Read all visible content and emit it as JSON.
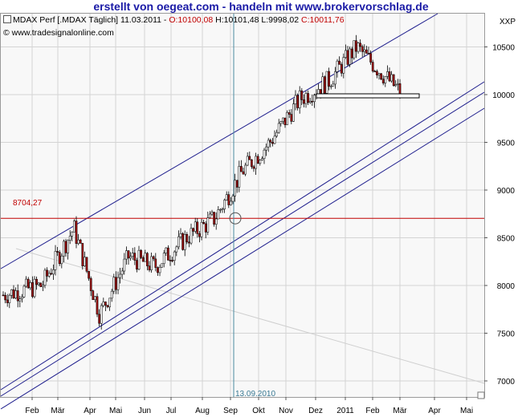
{
  "banner": "erstellt von oegeat.com - handeln mit www.brokervorschlag.de",
  "header": {
    "instrument": "MDAX Perf [.MDAX  Täglich] 11.03.2011 -",
    "open": "O:10100,08",
    "high": "H:10101,48",
    "low": "L:9998,02",
    "close": "C:10011,76"
  },
  "copyright": "© www.tradesignalonline.com",
  "symbol": "XXP",
  "horizontal_line_label": "8704,27",
  "vertical_line_label": "13.09.2010",
  "colors": {
    "title": "#1a1aa6",
    "channel_lines": "#1c1c8c",
    "horizontal_line": "#c00000",
    "vertical_line": "#4a8aa0",
    "up_candle": "#ffffff",
    "down_candle": "#a01010",
    "grid": "#d4d4d4"
  },
  "chart_data": {
    "type": "candlestick",
    "y_axis": {
      "ticks": [
        7000,
        7500,
        8000,
        8500,
        9000,
        9500,
        10000,
        10500
      ],
      "ylim": [
        6900,
        10900
      ],
      "grid": true,
      "side": "right"
    },
    "x_axis": {
      "ticks": [
        "Feb",
        "Mär",
        "Apr",
        "Mai",
        "Jun",
        "Jul",
        "Aug",
        "Sep",
        "Okt",
        "Nov",
        "Dez",
        "2011",
        "Feb",
        "Mär",
        "Apr",
        "Mai"
      ]
    },
    "horizontal_line": 8704.27,
    "vertical_line_date": "13.09.2010",
    "approx_close_path": [
      {
        "month": "Feb",
        "close": 7900
      },
      {
        "month": "Mär",
        "close": 8000
      },
      {
        "month": "Apr",
        "close": 8600
      },
      {
        "month": "Mai",
        "close": 7700
      },
      {
        "month": "Jun",
        "close": 8300
      },
      {
        "month": "Jul",
        "close": 8200
      },
      {
        "month": "Aug",
        "close": 8500
      },
      {
        "month": "Sep",
        "close": 8700
      },
      {
        "month": "Okt",
        "close": 9200
      },
      {
        "month": "Nov",
        "close": 9500
      },
      {
        "month": "Dez",
        "close": 9950
      },
      {
        "month": "2011",
        "close": 10150
      },
      {
        "month": "Feb",
        "close": 10500
      },
      {
        "month": "Mär",
        "close": 10011.76
      }
    ]
  }
}
